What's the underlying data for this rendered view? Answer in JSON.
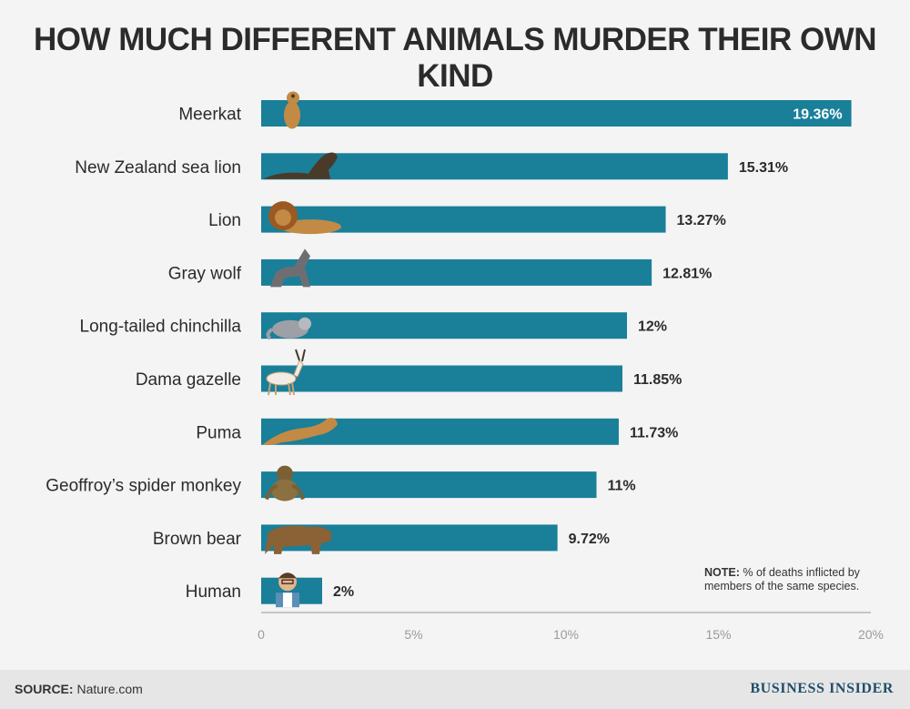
{
  "title": "HOW MUCH DIFFERENT ANIMALS MURDER THEIR OWN KIND",
  "note": {
    "label": "NOTE:",
    "text": "% of deaths inflicted by members of the same species."
  },
  "source": {
    "label": "SOURCE:",
    "text": "Nature.com"
  },
  "brand": "BUSINESS INSIDER",
  "colors": {
    "bar": "#1a7f99",
    "axis": "#b5b5b5",
    "text": "#2b2b2b",
    "tick": "#9a9a9a",
    "inside_label": "#ffffff"
  },
  "chart_data": {
    "type": "bar",
    "orientation": "horizontal",
    "title": "HOW MUCH DIFFERENT ANIMALS MURDER THEIR OWN KIND",
    "categories": [
      "Meerkat",
      "New Zealand sea lion",
      "Lion",
      "Gray wolf",
      "Long-tailed chinchilla",
      "Dama gazelle",
      "Puma",
      "Geoffroy’s spider monkey",
      "Brown bear",
      "Human"
    ],
    "values": [
      19.36,
      15.31,
      13.27,
      12.81,
      12,
      11.85,
      11.73,
      11,
      9.72,
      2
    ],
    "value_labels": [
      "19.36%",
      "15.31%",
      "13.27%",
      "12.81%",
      "12%",
      "11.85%",
      "11.73%",
      "11%",
      "9.72%",
      "2%"
    ],
    "icons": [
      "meerkat-icon",
      "sea-lion-icon",
      "lion-icon",
      "wolf-icon",
      "chinchilla-icon",
      "gazelle-icon",
      "puma-icon",
      "monkey-icon",
      "bear-icon",
      "human-icon"
    ],
    "xticks": [
      0,
      5,
      10,
      15,
      20
    ],
    "xtick_labels": [
      "0",
      "5%",
      "10%",
      "15%",
      "20%"
    ],
    "xlim": [
      0,
      20
    ],
    "grid": false,
    "xlabel": "",
    "ylabel": ""
  }
}
